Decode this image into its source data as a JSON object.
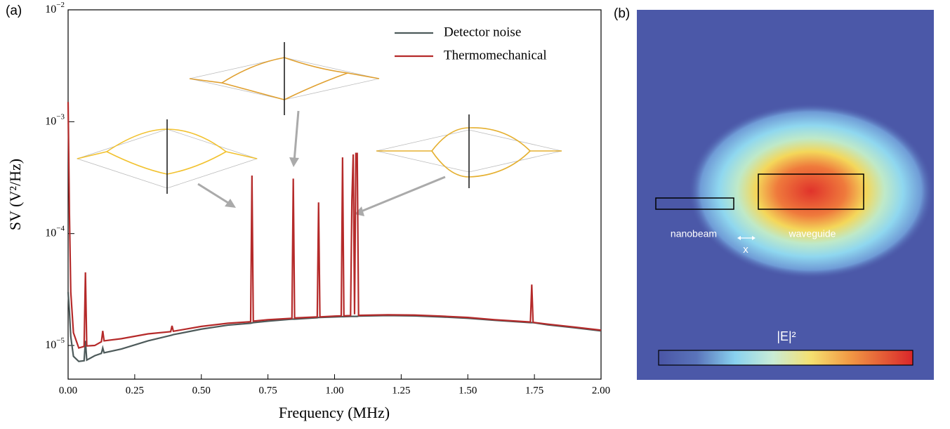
{
  "chart_data": {
    "type": "line",
    "panel_label": "(a)",
    "x_label": "Frequency (MHz)",
    "y_label": "SV (V²/Hz)",
    "log_y": true,
    "legend": "upper right",
    "xlim": [
      0,
      2
    ],
    "ylim": [
      5e-06,
      0.01
    ],
    "xticks": [
      {
        "value": 0,
        "label": "0.00"
      },
      {
        "value": 0.25,
        "label": "0.25"
      },
      {
        "value": 0.5,
        "label": "0.50"
      },
      {
        "value": 0.75,
        "label": "0.75"
      },
      {
        "value": 1,
        "label": "1.00"
      },
      {
        "value": 1.25,
        "label": "1.25"
      },
      {
        "value": 1.5,
        "label": "1.50"
      },
      {
        "value": 1.75,
        "label": "1.75"
      },
      {
        "value": 2,
        "label": "2.00"
      }
    ],
    "yticks": [
      {
        "value": 1e-05,
        "label": "10−5"
      },
      {
        "value": 0.0001,
        "label": "10−4"
      },
      {
        "value": 0.001,
        "label": "10−3"
      },
      {
        "value": 0.01,
        "label": "10−2"
      }
    ],
    "x": [
      0,
      0.005,
      0.01,
      0.02,
      0.04,
      0.06,
      0.065,
      0.07,
      0.1,
      0.125,
      0.13,
      0.135,
      0.2,
      0.3,
      0.385,
      0.39,
      0.395,
      0.5,
      0.6,
      0.685,
      0.69,
      0.695,
      0.75,
      0.84,
      0.845,
      0.85,
      0.935,
      0.94,
      0.945,
      1.0,
      1.025,
      1.03,
      1.035,
      1.06,
      1.065,
      1.07,
      1.075,
      1.08,
      1.085,
      1.09,
      1.2,
      1.3,
      1.4,
      1.5,
      1.6,
      1.735,
      1.74,
      1.745,
      1.8,
      1.9,
      2.0
    ],
    "series": [
      {
        "name": "Detector noise",
        "color": "#4d5a5a",
        "values": [
          3e-05,
          2e-05,
          1.2e-05,
          8e-06,
          7.2e-06,
          7.3e-06,
          1.1e-05,
          7.4e-06,
          8.1e-06,
          8.5e-06,
          9.5e-06,
          8.6e-06,
          9.3e-06,
          1.1e-05,
          1.23e-05,
          1.24e-05,
          1.25e-05,
          1.4e-05,
          1.52e-05,
          1.58e-05,
          1.59e-05,
          1.6e-05,
          1.65e-05,
          1.72e-05,
          1.72e-05,
          1.72e-05,
          1.77e-05,
          1.78e-05,
          1.78e-05,
          1.8e-05,
          1.81e-05,
          1.81e-05,
          1.81e-05,
          1.82e-05,
          1.82e-05,
          1.82e-05,
          1.82e-05,
          1.82e-05,
          1.82e-05,
          1.83e-05,
          1.85e-05,
          1.84e-05,
          1.8e-05,
          1.75e-05,
          1.68e-05,
          1.6e-05,
          1.6e-05,
          1.6e-05,
          1.53e-05,
          1.44e-05,
          1.35e-05
        ]
      },
      {
        "name": "Thermomechanical",
        "color": "#b52a2a",
        "values": [
          0.0015,
          0.00015,
          3e-05,
          1.3e-05,
          9.5e-06,
          9.8e-06,
          4.5e-05,
          9.9e-06,
          1e-05,
          1.08e-05,
          1.35e-05,
          1.1e-05,
          1.15e-05,
          1.27e-05,
          1.33e-05,
          1.5e-05,
          1.34e-05,
          1.48e-05,
          1.58e-05,
          1.63e-05,
          0.00033,
          1.65e-05,
          1.7e-05,
          1.75e-05,
          0.00031,
          1.76e-05,
          1.8e-05,
          0.00019,
          1.8e-05,
          1.83e-05,
          1.84e-05,
          0.00048,
          1.84e-05,
          1.85e-05,
          0.0002,
          0.00051,
          1.9e-05,
          0.00052,
          0.00052,
          1.86e-05,
          1.88e-05,
          1.87e-05,
          1.83e-05,
          1.78e-05,
          1.7e-05,
          1.62e-05,
          3.5e-05,
          1.61e-05,
          1.55e-05,
          1.46e-05,
          1.37e-05
        ]
      }
    ]
  },
  "field_map": {
    "panel_label": "(b)",
    "nanobeam": "nanobeam",
    "waveguide": "waveguide",
    "gap": "x",
    "colorbar_label": "|E|²"
  }
}
